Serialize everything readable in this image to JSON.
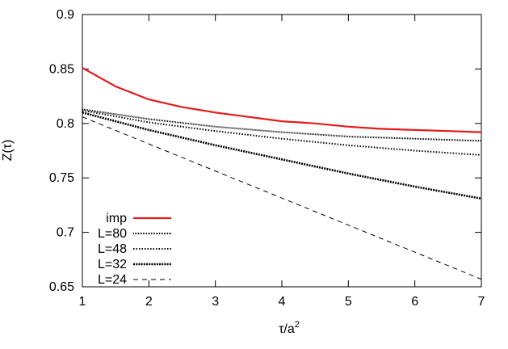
{
  "chart_data": {
    "type": "line",
    "title": "",
    "xlabel": {
      "base": "τ/a",
      "sup": "2"
    },
    "ylabel": "Z(τ)",
    "xlim": [
      1,
      7
    ],
    "ylim": [
      0.65,
      0.9
    ],
    "xticks": [
      1,
      2,
      3,
      4,
      5,
      6,
      7
    ],
    "yticks": [
      0.65,
      0.7,
      0.75,
      0.8,
      0.85,
      0.9
    ],
    "ytick_labels": [
      "0.65",
      "0.7",
      "0.75",
      "0.8",
      "0.85",
      "0.9"
    ],
    "grid": false,
    "legend_position": "bottom-left",
    "series": [
      {
        "name": "imp",
        "style": "solid",
        "color": "#e31a1c",
        "x": [
          1,
          1.5,
          2,
          2.5,
          3,
          3.5,
          4,
          4.5,
          5,
          5.5,
          6,
          6.5,
          7
        ],
        "y": [
          0.851,
          0.834,
          0.822,
          0.815,
          0.81,
          0.806,
          0.802,
          0.8,
          0.797,
          0.795,
          0.794,
          0.793,
          0.792
        ]
      },
      {
        "name": "L=80",
        "style": "dotted-fine",
        "color": "#000000",
        "x": [
          1,
          2,
          3,
          4,
          5,
          6,
          7
        ],
        "y": [
          0.813,
          0.804,
          0.797,
          0.792,
          0.788,
          0.786,
          0.784
        ]
      },
      {
        "name": "L=48",
        "style": "dotted",
        "color": "#000000",
        "x": [
          1,
          2,
          3,
          4,
          5,
          6,
          7
        ],
        "y": [
          0.812,
          0.801,
          0.793,
          0.786,
          0.78,
          0.775,
          0.771
        ]
      },
      {
        "name": "L=32",
        "style": "dotted-thick",
        "color": "#000000",
        "x": [
          1,
          2,
          3,
          4,
          5,
          6,
          7
        ],
        "y": [
          0.81,
          0.794,
          0.78,
          0.767,
          0.754,
          0.742,
          0.731
        ]
      },
      {
        "name": "L=24",
        "style": "dashed",
        "color": "#000000",
        "x": [
          1,
          7
        ],
        "y": [
          0.806,
          0.657
        ]
      }
    ]
  }
}
